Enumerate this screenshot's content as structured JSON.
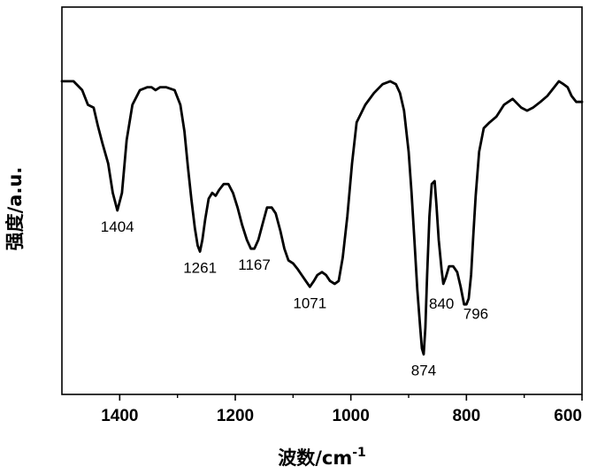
{
  "chart_data": {
    "type": "line",
    "title": "",
    "xlabel": "波数/cm",
    "xlabel_sup": "-1",
    "ylabel": "强度/a.u.",
    "xlim": [
      1500,
      600
    ],
    "x_reversed": true,
    "y_ticks_shown": false,
    "xticks": [
      1400,
      1200,
      1000,
      800,
      600
    ],
    "xtick_labels": [
      "1400",
      "1200",
      "1000",
      "800",
      "600"
    ],
    "grid": false,
    "line_color": "#000000",
    "series": [
      {
        "x": [
          1500,
          1480,
          1465,
          1455,
          1445,
          1438,
          1430,
          1420,
          1412,
          1404,
          1396,
          1388,
          1378,
          1365,
          1352,
          1345,
          1338,
          1330,
          1320,
          1305,
          1295,
          1288,
          1282,
          1276,
          1270,
          1265,
          1261,
          1257,
          1252,
          1246,
          1240,
          1234,
          1228,
          1220,
          1212,
          1204,
          1196,
          1188,
          1180,
          1173,
          1167,
          1160,
          1152,
          1145,
          1137,
          1130,
          1122,
          1115,
          1108,
          1100,
          1092,
          1085,
          1078,
          1071,
          1064,
          1058,
          1050,
          1043,
          1036,
          1028,
          1021,
          1014,
          1006,
          998,
          990,
          975,
          960,
          945,
          932,
          922,
          915,
          908,
          900,
          895,
          890,
          885,
          880,
          877,
          874,
          871,
          868,
          864,
          860,
          855,
          852,
          848,
          843,
          840,
          836,
          830,
          823,
          816,
          810,
          804,
          800,
          796,
          792,
          788,
          784,
          778,
          770,
          760,
          748,
          735,
          720,
          705,
          695,
          685,
          672,
          660,
          648,
          640,
          632,
          625,
          618,
          610,
          600
        ],
        "y": [
          94,
          94,
          91,
          86,
          85,
          79,
          73,
          66,
          56,
          50,
          56,
          74,
          86,
          91,
          92,
          92,
          91,
          92,
          92,
          91,
          86,
          77,
          65,
          54,
          44,
          38,
          36,
          40,
          47,
          54,
          56,
          55,
          57,
          59,
          59,
          56,
          51,
          45,
          40,
          37,
          37,
          40,
          46,
          51,
          51,
          49,
          43,
          37,
          33,
          32,
          30,
          28,
          26,
          24,
          26,
          28,
          29,
          28,
          26,
          25,
          26,
          34,
          48,
          66,
          80,
          86,
          90,
          93,
          94,
          93,
          90,
          84,
          70,
          56,
          40,
          23,
          10,
          3,
          1,
          10,
          28,
          48,
          59,
          60,
          52,
          40,
          30,
          25,
          27,
          31,
          31,
          29,
          24,
          18,
          18,
          20,
          28,
          42,
          55,
          70,
          78,
          80,
          82,
          86,
          88,
          85,
          84,
          85,
          87,
          89,
          92,
          94,
          93,
          92,
          89,
          87,
          87
        ]
      }
    ],
    "annotations": [
      {
        "label": "1404",
        "x": 1404
      },
      {
        "label": "1261",
        "x": 1261
      },
      {
        "label": "1167",
        "x": 1167
      },
      {
        "label": "1071",
        "x": 1071
      },
      {
        "label": "874",
        "x": 874
      },
      {
        "label": "840",
        "x": 840
      },
      {
        "label": "796",
        "x": 796
      }
    ]
  }
}
